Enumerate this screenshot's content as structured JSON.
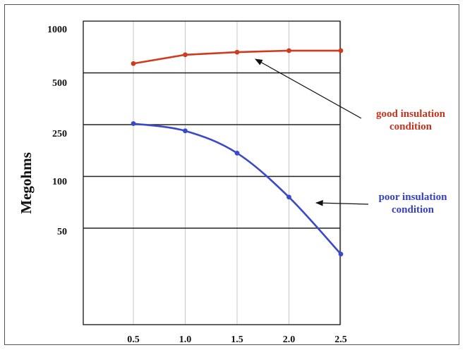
{
  "chart_data": {
    "type": "line",
    "ylabel": "Megohms",
    "xlabel": "",
    "x": [
      0.5,
      1.0,
      1.5,
      2.0,
      2.5
    ],
    "x_tick_labels": [
      "0.5",
      "1.0",
      "1.5",
      "2.0",
      "2.5"
    ],
    "y_tick_labels": [
      "1000",
      "500",
      "250",
      "100",
      "50"
    ],
    "y_ticks": [
      1000,
      500,
      250,
      100,
      50
    ],
    "y_tick_levels": [
      0,
      1,
      2,
      3,
      4
    ],
    "y_scale": "nonlinear (categorical levels)",
    "grid": true,
    "series": [
      {
        "name": "good insulation condition",
        "color": "#d03a1e",
        "levels": [
          0.82,
          0.65,
          0.6,
          0.57,
          0.57
        ]
      },
      {
        "name": "poor insulation condition",
        "color": "#3a49c8",
        "levels": [
          1.98,
          2.12,
          2.55,
          3.4,
          4.5
        ]
      }
    ],
    "annotations": [
      {
        "lines": [
          "good insulation",
          "condition"
        ],
        "color": "#c8321a",
        "series": 0
      },
      {
        "lines": [
          "poor insulation",
          "condition"
        ],
        "color": "#3440c0",
        "series": 1
      }
    ]
  }
}
